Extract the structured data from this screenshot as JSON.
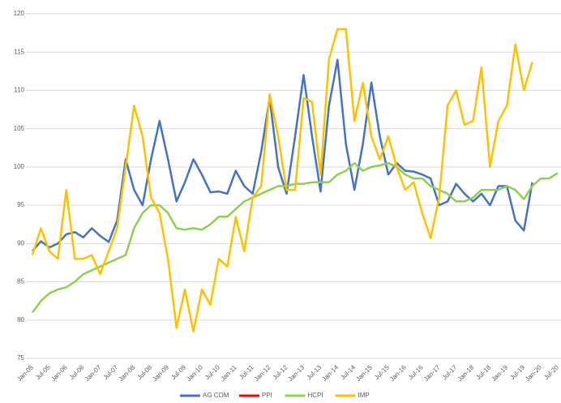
{
  "chart_data": {
    "type": "line",
    "categories": [
      "Jan-05",
      null,
      "Jul-05",
      null,
      "Jan-06",
      null,
      "Jul-06",
      null,
      "Jan-07",
      null,
      "Jul-07",
      null,
      "Jan-08",
      null,
      "Jul-08",
      null,
      "Jan-09",
      null,
      "Jul-09",
      null,
      "Jan-10",
      null,
      "Jul-10",
      null,
      "Jan-11",
      null,
      "Jul-11",
      null,
      "Jan-12",
      null,
      "Jul-12",
      null,
      "Jan-13",
      null,
      "Jul-13",
      null,
      "Jan-14",
      null,
      "Jul-14",
      null,
      "Jan-15",
      null,
      "Jul-15",
      null,
      "Jan-16",
      null,
      "Jul-16",
      null,
      "Jan-17",
      null,
      "Jul-17",
      null,
      "Jan-18",
      null,
      "Jul-18",
      null,
      "Jan-19",
      null,
      "Jul-19",
      null,
      "Jan-20",
      null,
      "Jul-20"
    ],
    "series": [
      {
        "name": "AG COM",
        "color": "#4472c4",
        "values": [
          89,
          90.3,
          89.5,
          90,
          91.2,
          91.5,
          90.8,
          92,
          91,
          90.2,
          93,
          101,
          97,
          95,
          101,
          106,
          101,
          95.5,
          98,
          101,
          99,
          96.7,
          96.8,
          96.5,
          99.5,
          97.5,
          96.5,
          102,
          109,
          100,
          96.5,
          104,
          112,
          104,
          96.8,
          108,
          114,
          103,
          97,
          103,
          111,
          104,
          99,
          100.5,
          99.5,
          99.4,
          99,
          98.5,
          95,
          95.5,
          97.8,
          96.5,
          95.5,
          96.5,
          95,
          97.5,
          97.5,
          93,
          91.7,
          98,
          null,
          null,
          null
        ]
      },
      {
        "name": "PPI",
        "color": "#ff0000",
        "values": [
          null,
          null,
          null,
          null,
          null,
          null,
          null,
          null,
          null,
          null,
          null,
          null,
          null,
          null,
          null,
          null,
          null,
          null,
          null,
          null,
          null,
          null,
          null,
          null,
          null,
          null,
          null,
          null,
          null,
          null,
          null,
          null,
          null,
          null,
          null,
          null,
          null,
          null,
          null,
          null,
          null,
          null,
          null,
          null,
          null,
          null,
          null,
          null,
          null,
          null,
          null,
          null,
          null,
          null,
          null,
          null,
          null,
          null,
          null,
          null,
          null,
          null,
          null
        ]
      },
      {
        "name": "HCPI",
        "color": "#8fcf4c",
        "values": [
          81,
          82.5,
          83.5,
          84,
          84.3,
          85,
          86,
          86.5,
          87,
          87.5,
          88,
          88.5,
          92,
          94,
          95,
          95,
          94,
          92,
          91.8,
          92,
          91.8,
          92.5,
          93.5,
          93.5,
          94.5,
          95.5,
          96,
          96.5,
          97,
          97.5,
          97.5,
          97.8,
          97.8,
          98,
          98,
          98,
          99,
          99.5,
          100.5,
          99.5,
          100,
          100.2,
          100.5,
          100,
          99,
          98.5,
          98.5,
          97.5,
          97,
          96.5,
          95.5,
          95.5,
          96,
          97,
          97,
          97,
          97.5,
          97,
          95.8,
          97.5,
          98.5,
          98.5,
          99.2
        ]
      },
      {
        "name": "IMP",
        "color": "#ffc000",
        "values": [
          88.5,
          92,
          89,
          88,
          97,
          88,
          88,
          88.5,
          86,
          89,
          92,
          100,
          108,
          104,
          96,
          94,
          88,
          79,
          84,
          78.5,
          84,
          82,
          88,
          87,
          93.5,
          89,
          96,
          97.5,
          109.5,
          104,
          97,
          97,
          109,
          108.5,
          99,
          114,
          118,
          118,
          106,
          111,
          104,
          101,
          104,
          100,
          97,
          98,
          94,
          90.7,
          96,
          108,
          110,
          105.5,
          106,
          113,
          100,
          106,
          108,
          116,
          110,
          113.7,
          null,
          null,
          null
        ]
      }
    ],
    "ylim": [
      75,
      120
    ],
    "yticks": [
      75,
      80,
      85,
      90,
      95,
      100,
      105,
      110,
      115,
      120
    ],
    "grid": true,
    "legend": "bottom"
  }
}
